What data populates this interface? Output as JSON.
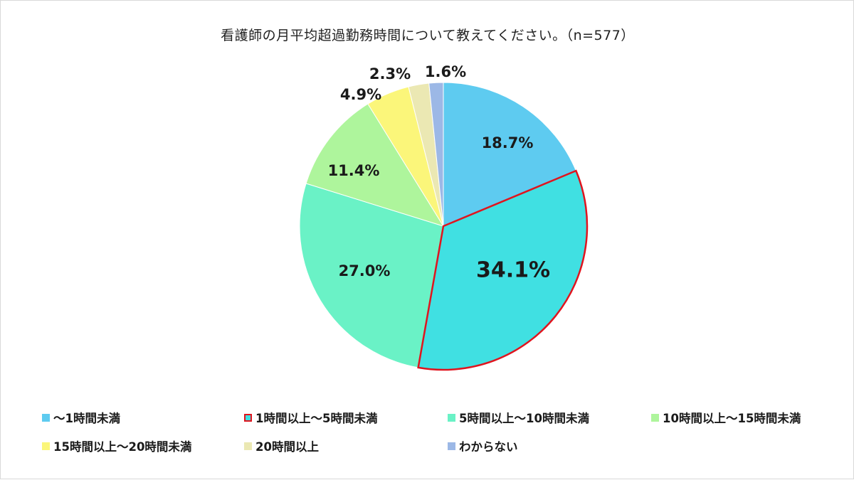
{
  "chart_data": {
    "type": "pie",
    "title": "看護師の月平均超過勤務時間について教えてください。（n=577）",
    "slices": [
      {
        "label": "～1時間未満",
        "value": 18.7,
        "display": "18.7%",
        "color": "#5ecbf0",
        "highlight": false
      },
      {
        "label": "1時間以上～5時間未満",
        "value": 34.1,
        "display": "34.1%",
        "color": "#40e0e2",
        "highlight": true
      },
      {
        "label": "5時間以上～10時間未満",
        "value": 27.0,
        "display": "27.0%",
        "color": "#6af2c6",
        "highlight": false
      },
      {
        "label": "10時間以上～15時間未満",
        "value": 11.4,
        "display": "11.4%",
        "color": "#aef59c",
        "highlight": false
      },
      {
        "label": "15時間以上～20時間未満",
        "value": 4.9,
        "display": "4.9%",
        "color": "#fbf67a",
        "highlight": false
      },
      {
        "label": "20時間以上",
        "value": 2.3,
        "display": "2.3%",
        "color": "#ebe8b3",
        "highlight": false
      },
      {
        "label": "わからない",
        "value": 1.6,
        "display": "1.6%",
        "color": "#9cb8e6",
        "highlight": false
      }
    ],
    "highlight_border_color": "#e0141e",
    "legend_placement": "bottom"
  }
}
